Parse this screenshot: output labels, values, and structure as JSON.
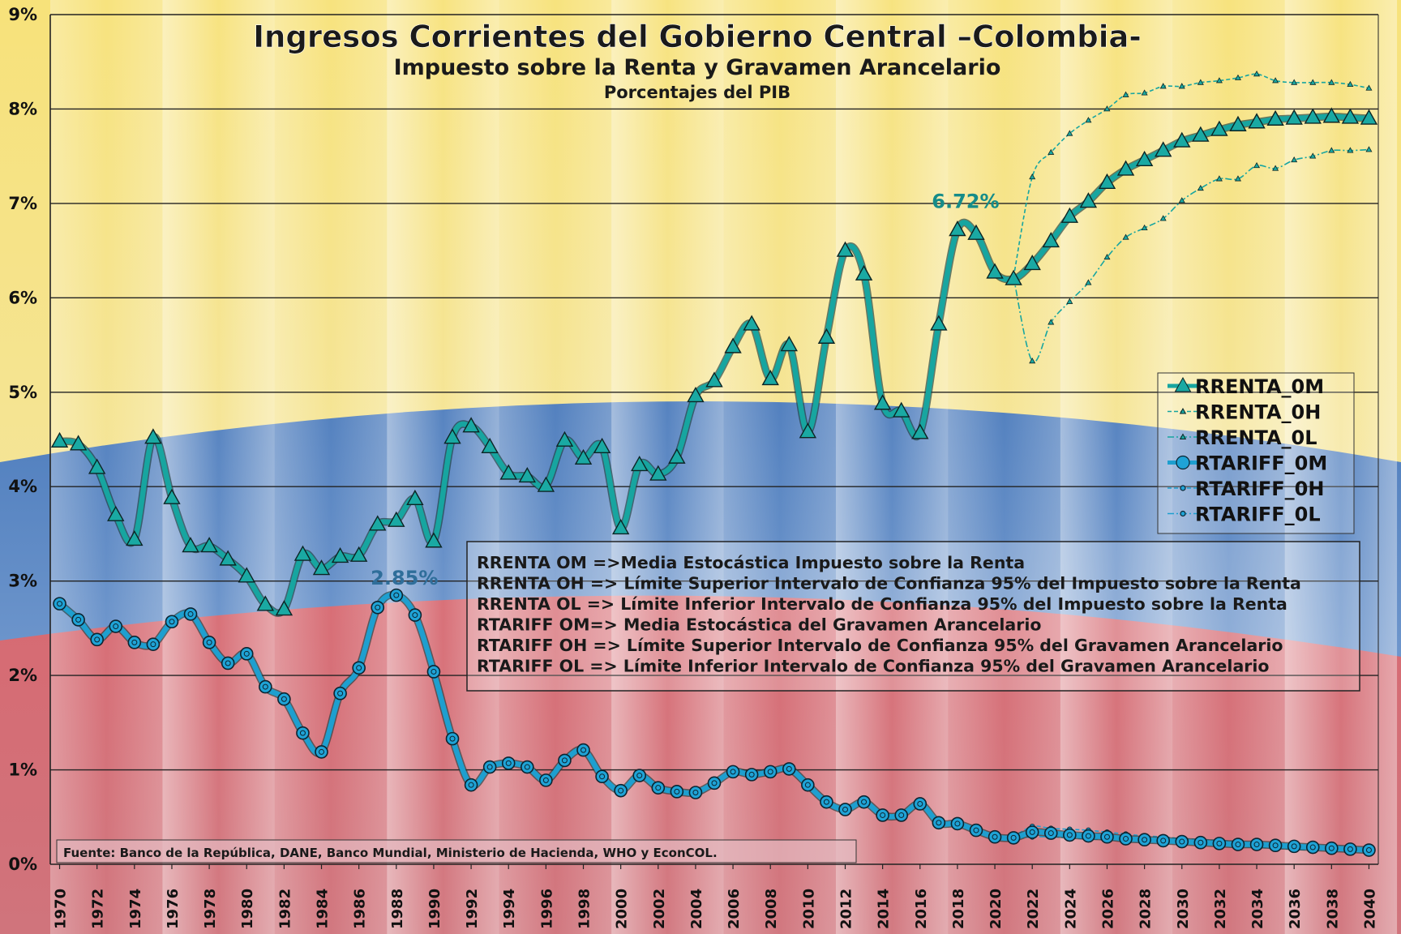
{
  "chart_data": {
    "type": "line",
    "title": "Ingresos Corrientes del Gobierno Central –Colombia-",
    "subtitle": "Impuesto sobre la Renta y Gravamen Arancelario",
    "subtitle2": "Porcentajes del PIB",
    "xlabel": "",
    "ylabel": "",
    "ylim": [
      0,
      9
    ],
    "y_ticks": [
      "0%",
      "1%",
      "2%",
      "3%",
      "4%",
      "5%",
      "6%",
      "7%",
      "8%",
      "9%"
    ],
    "x_tick_labels": [
      "1970",
      "1972",
      "1974",
      "1976",
      "1978",
      "1980",
      "1982",
      "1984",
      "1986",
      "1988",
      "1990",
      "1992",
      "1994",
      "1996",
      "1998",
      "2000",
      "2002",
      "2004",
      "2006",
      "2008",
      "2010",
      "2012",
      "2014",
      "2016",
      "2018",
      "2020",
      "2022",
      "2024",
      "2026",
      "2028",
      "2030",
      "2032",
      "2034",
      "2036",
      "2038",
      "2040"
    ],
    "x_start": 1970,
    "x_end": 2040,
    "series": [
      {
        "name": "RRENTA_0M",
        "color": "#17a5a0",
        "x_start": 1970,
        "values": [
          4.48,
          4.45,
          4.2,
          3.7,
          3.44,
          4.52,
          3.88,
          3.37,
          3.37,
          3.23,
          3.05,
          2.75,
          2.7,
          3.28,
          3.13,
          3.26,
          3.27,
          3.6,
          3.64,
          3.87,
          3.42,
          4.52,
          4.64,
          4.42,
          4.14,
          4.11,
          4.01,
          4.49,
          4.3,
          4.42,
          3.56,
          4.23,
          4.13,
          4.31,
          4.96,
          5.12,
          5.48,
          5.72,
          5.14,
          5.5,
          4.58,
          5.58,
          6.5,
          6.25,
          4.88,
          4.8,
          4.57,
          5.72,
          6.72,
          6.68,
          6.27,
          6.2,
          6.36,
          6.6,
          6.86,
          7.02,
          7.22,
          7.36,
          7.46,
          7.56,
          7.66,
          7.72,
          7.78,
          7.83,
          7.86,
          7.89,
          7.9,
          7.91,
          7.92,
          7.91,
          7.9
        ]
      },
      {
        "name": "RRENTA_0H",
        "color": "#17a5a0",
        "x_start": 2021,
        "values": [
          6.22,
          7.28,
          7.54,
          7.74,
          7.88,
          8.0,
          8.15,
          8.17,
          8.24,
          8.24,
          8.28,
          8.3,
          8.33,
          8.37,
          8.3,
          8.28,
          8.28,
          8.28,
          8.26,
          8.22
        ]
      },
      {
        "name": "RRENTA_0L",
        "color": "#17a5a0",
        "x_start": 2021,
        "values": [
          6.22,
          5.33,
          5.74,
          5.96,
          6.16,
          6.43,
          6.64,
          6.74,
          6.84,
          7.03,
          7.16,
          7.26,
          7.26,
          7.4,
          7.37,
          7.46,
          7.5,
          7.56,
          7.56,
          7.57
        ]
      },
      {
        "name": "RTARIFF_0M",
        "color": "#1e9fcf",
        "x_start": 1970,
        "values": [
          2.76,
          2.59,
          2.38,
          2.52,
          2.35,
          2.33,
          2.57,
          2.65,
          2.35,
          2.13,
          2.23,
          1.88,
          1.75,
          1.39,
          1.19,
          1.81,
          2.08,
          2.72,
          2.85,
          2.64,
          2.04,
          1.33,
          0.84,
          1.03,
          1.07,
          1.03,
          0.89,
          1.1,
          1.21,
          0.93,
          0.78,
          0.94,
          0.81,
          0.77,
          0.76,
          0.86,
          0.98,
          0.95,
          0.98,
          1.01,
          0.84,
          0.66,
          0.58,
          0.66,
          0.52,
          0.52,
          0.64,
          0.44,
          0.43,
          0.36,
          0.29,
          0.28,
          0.34,
          0.33,
          0.31,
          0.3,
          0.29,
          0.27,
          0.26,
          0.25,
          0.24,
          0.23,
          0.22,
          0.21,
          0.21,
          0.2,
          0.19,
          0.18,
          0.17,
          0.16,
          0.15
        ]
      },
      {
        "name": "RTARIFF_0H",
        "color": "#1e9fcf",
        "x_start": 2021,
        "values": [
          0.29,
          0.4,
          0.38,
          0.37,
          0.36,
          0.34,
          0.32,
          0.3,
          0.29,
          0.27,
          0.26,
          0.25,
          0.24,
          0.23,
          0.22,
          0.21,
          0.2,
          0.19,
          0.18,
          0.17
        ]
      },
      {
        "name": "RTARIFF_0L",
        "color": "#1e9fcf",
        "x_start": 2021,
        "values": [
          0.27,
          0.29,
          0.29,
          0.28,
          0.27,
          0.26,
          0.25,
          0.24,
          0.23,
          0.22,
          0.21,
          0.2,
          0.19,
          0.18,
          0.17,
          0.16,
          0.15,
          0.15,
          0.14,
          0.14
        ]
      }
    ],
    "annotations": [
      {
        "text": "6.72%",
        "x": 2018,
        "y": 6.72
      },
      {
        "text": "2.85%",
        "x": 1988,
        "y": 2.85
      }
    ],
    "legend": {
      "placement": "right",
      "entries": [
        "RRENTA_0M",
        "RRENTA_0H",
        "RRENTA_0L",
        "RTARIFF_0M",
        "RTARIFF_0H",
        "RTARIFF_0L"
      ]
    },
    "notes": [
      "RRENTA OM =>Media Estocástica Impuesto sobre la Renta",
      "RRENTA OH => Límite Superior Intervalo de Confianza 95% del Impuesto sobre la Renta",
      "RRENTA OL => Límite Inferior Intervalo de Confianza 95% del Impuesto sobre la Renta",
      "RTARIFF OM=> Media Estocástica  del Gravamen Arancelario",
      "RTARIFF OH => Límite Superior Intervalo de Confianza 95% del Gravamen Arancelario",
      "RTARIFF OL => Límite Inferior Intervalo de Confianza 95% del Gravamen Arancelario"
    ],
    "source": "Fuente: Banco de la República, DANE, Banco Mundial, Ministerio de Hacienda, WHO y EconCOL.",
    "grid": "horizontal"
  }
}
